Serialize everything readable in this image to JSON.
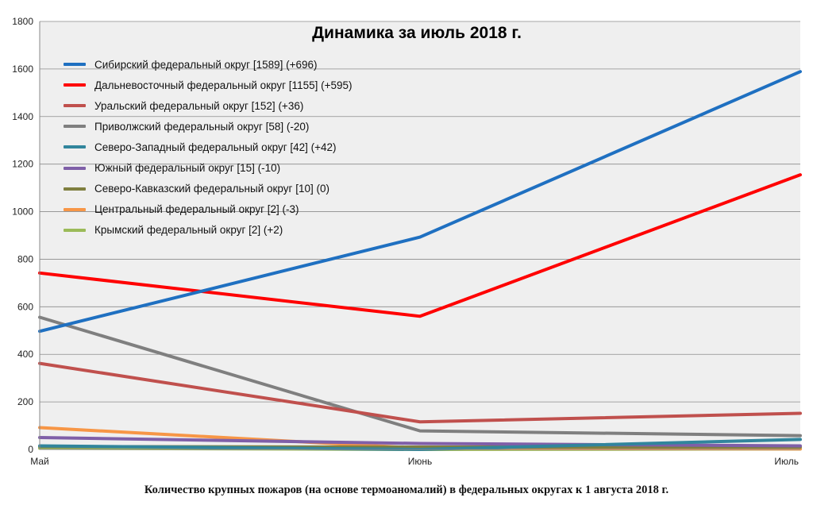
{
  "chart_data": {
    "type": "line",
    "title": "Динамика за июль 2018 г.",
    "categories": [
      "Май",
      "Июнь",
      "Июль"
    ],
    "ylim": [
      0,
      1800
    ],
    "yticks": [
      "0",
      "200",
      "400",
      "600",
      "800",
      "1000",
      "1200",
      "1400",
      "1600",
      "1800"
    ],
    "grid": true,
    "legend_position": "top-left",
    "series": [
      {
        "name": "Сибирский федеральный округ [1589] (+696)",
        "color": "#1F70C1",
        "values": [
          497,
          893,
          1589
        ]
      },
      {
        "name": "Дальневосточный федеральный округ [1155] (+595)",
        "color": "#FF0000",
        "values": [
          742,
          560,
          1155
        ]
      },
      {
        "name": "Уральский федеральный округ [152] (+36)",
        "color": "#C0504D",
        "values": [
          362,
          116,
          152
        ]
      },
      {
        "name": "Приволжский федеральный округ [58] (-20)",
        "color": "#7F7F7F",
        "values": [
          556,
          78,
          58
        ]
      },
      {
        "name": "Северо-Западный федеральный округ [42] (+42)",
        "color": "#31859C",
        "values": [
          15,
          0,
          42
        ]
      },
      {
        "name": "Южный федеральный округ [15] (-10)",
        "color": "#7F5FA8",
        "values": [
          50,
          25,
          15
        ]
      },
      {
        "name": "Северо-Кавказский федеральный округ [10] (0)",
        "color": "#7F7F3F",
        "values": [
          12,
          10,
          10
        ]
      },
      {
        "name": "Центральный федеральный округ [2] (-3)",
        "color": "#F79646",
        "values": [
          92,
          5,
          2
        ]
      },
      {
        "name": "Крымский федеральный округ [2] (+2)",
        "color": "#9BBB59",
        "values": [
          5,
          0,
          2
        ]
      }
    ]
  },
  "caption": "Количество крупных пожаров (на основе термоаномалий) в федеральных округах к 1 августа 2018 г."
}
